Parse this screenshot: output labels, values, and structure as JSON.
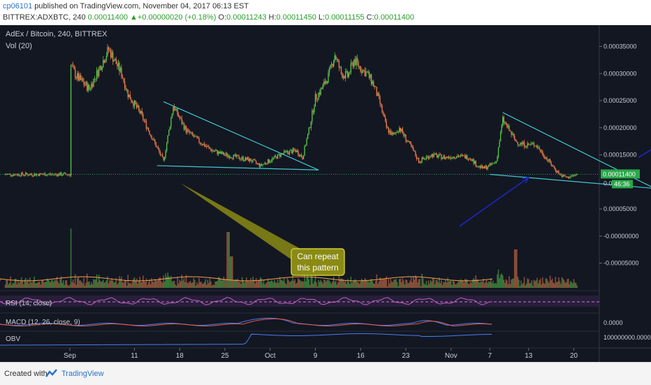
{
  "header": {
    "author": "cp06101",
    "published_text": " published on TradingView.com, November 04, 2017 06:13 EST",
    "symbol": "BITTREX:ADXBTC, 240",
    "last": "0.00011400",
    "change": "+0.00000020 (+0.18%)",
    "open_label": "O:",
    "open": "0.00011243",
    "high_label": "H:",
    "high": "0.00011450",
    "low_label": "L:",
    "low": "0.00011155",
    "close_label": "C:",
    "close": "0.00011400"
  },
  "footer": {
    "created_with": "Created with",
    "brand": "TradingView"
  },
  "colors": {
    "background": "#131722",
    "up": "#55c04a",
    "down": "#e8784a",
    "trendline": "#3fc6d0",
    "arrow": "#1c28c8",
    "callout": "#8a8a14"
  },
  "chart_data": {
    "type": "candlestick",
    "title": "AdEx / Bitcoin, 240, BITTREX",
    "indicator_labels": [
      "Vol (20)",
      "RSI (14, close)",
      "MACD (12, 26, close, 9)",
      "OBV"
    ],
    "x_ticks": [
      "Sep",
      "11",
      "18",
      "25",
      "Oct",
      "9",
      "16",
      "23",
      "Nov",
      "7",
      "13",
      "20"
    ],
    "y_ticks": [
      "0.00035000",
      "0.00030000",
      "0.00025000",
      "0.00020000",
      "0.00015000",
      "0.00005000",
      "-0.00000000",
      "-0.00005000"
    ],
    "price_partial_label": "0.000",
    "last_price_label": "0.00011400",
    "countdown_label": "46:36",
    "macd_tick": "0.0000",
    "obv_tick": "100000000.0000",
    "ylim": [
      -7.5e-05,
      0.00037
    ],
    "anchors": [
      {
        "d": 0,
        "p": 0.000318
      },
      {
        "d": 1,
        "p": 0.000295
      },
      {
        "d": 3,
        "p": 0.000272
      },
      {
        "d": 5,
        "p": 0.00032
      },
      {
        "d": 6,
        "p": 0.000345
      },
      {
        "d": 8,
        "p": 0.0003
      },
      {
        "d": 9,
        "p": 0.000262
      },
      {
        "d": 11,
        "p": 0.000225
      },
      {
        "d": 13,
        "p": 0.000175
      },
      {
        "d": 14.5,
        "p": 0.000138
      },
      {
        "d": 16,
        "p": 0.00024
      },
      {
        "d": 18,
        "p": 0.000195
      },
      {
        "d": 20,
        "p": 0.000175
      },
      {
        "d": 22,
        "p": 0.000158
      },
      {
        "d": 24,
        "p": 0.00015
      },
      {
        "d": 26,
        "p": 0.000145
      },
      {
        "d": 28,
        "p": 0.00014
      },
      {
        "d": 29.5,
        "p": 0.00013
      },
      {
        "d": 31,
        "p": 0.00014
      },
      {
        "d": 33,
        "p": 0.000153
      },
      {
        "d": 35,
        "p": 0.000158
      },
      {
        "d": 36,
        "p": 0.000145
      },
      {
        "d": 37,
        "p": 0.000195
      },
      {
        "d": 38,
        "p": 0.000255
      },
      {
        "d": 39,
        "p": 0.000272
      },
      {
        "d": 40,
        "p": 0.000295
      },
      {
        "d": 41,
        "p": 0.000335
      },
      {
        "d": 42,
        "p": 0.0003
      },
      {
        "d": 43,
        "p": 0.000295
      },
      {
        "d": 44,
        "p": 0.000325
      },
      {
        "d": 45,
        "p": 0.00031
      },
      {
        "d": 46,
        "p": 0.0003
      },
      {
        "d": 47,
        "p": 0.00028
      },
      {
        "d": 48,
        "p": 0.000245
      },
      {
        "d": 49,
        "p": 0.0002
      },
      {
        "d": 50,
        "p": 0.000185
      },
      {
        "d": 51,
        "p": 0.0002
      },
      {
        "d": 52,
        "p": 0.00018
      },
      {
        "d": 53,
        "p": 0.00016
      },
      {
        "d": 54,
        "p": 0.000138
      },
      {
        "d": 56,
        "p": 0.00015
      },
      {
        "d": 58,
        "p": 0.000145
      },
      {
        "d": 60,
        "p": 0.000148
      },
      {
        "d": 62,
        "p": 0.000145
      },
      {
        "d": 63,
        "p": 0.00013
      },
      {
        "d": 64,
        "p": 0.000125
      },
      {
        "d": 65,
        "p": 0.00013
      },
      {
        "d": 66,
        "p": 0.000138
      },
      {
        "d": 67,
        "p": 0.000215
      },
      {
        "d": 68,
        "p": 0.000195
      },
      {
        "d": 69,
        "p": 0.000175
      },
      {
        "d": 70,
        "p": 0.00017
      },
      {
        "d": 71,
        "p": 0.000168
      },
      {
        "d": 72,
        "p": 0.00017
      },
      {
        "d": 73,
        "p": 0.000155
      },
      {
        "d": 74,
        "p": 0.00014
      },
      {
        "d": 75,
        "p": 0.000125
      },
      {
        "d": 76,
        "p": 0.000112
      },
      {
        "d": 77,
        "p": 0.000108
      },
      {
        "d": 78,
        "p": 0.000112
      },
      {
        "d": 78.6,
        "p": 0.000114
      }
    ],
    "trendlines": [
      {
        "from": {
          "d": 14.5,
          "p": 0.000248
        },
        "to": {
          "d": 38.5,
          "p": 0.000122
        }
      },
      {
        "from": {
          "d": 13.5,
          "p": 0.00013
        },
        "to": {
          "d": 38.5,
          "p": 0.000122
        }
      },
      {
        "from": {
          "d": 67,
          "p": 0.000228
        },
        "to": {
          "d": 90.5,
          "p": 8.8e-05
        }
      },
      {
        "from": {
          "d": 65,
          "p": 0.000114
        },
        "to": {
          "d": 90.5,
          "p": 8.8e-05
        }
      }
    ],
    "arrows": [
      {
        "from": {
          "d": 60.3,
          "p": 1.8e-05
        },
        "to": {
          "d": 71,
          "p": 0.000108
        }
      },
      {
        "from": {
          "d": 88,
          "p": 0.000145
        },
        "to": {
          "d": 96.5,
          "p": 0.000208
        }
      }
    ],
    "callout_text": [
      "Can repeat",
      "this pattern"
    ]
  }
}
